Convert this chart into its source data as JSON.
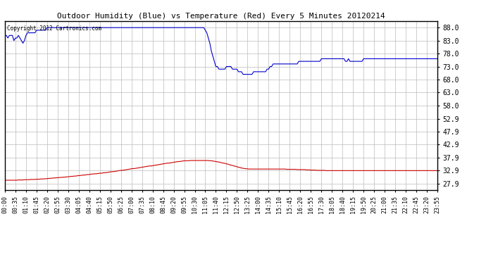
{
  "title": "Outdoor Humidity (Blue) vs Temperature (Red) Every 5 Minutes 20120214",
  "copyright_text": "Copyright 2012 Cartronics.com",
  "yticks": [
    27.9,
    32.9,
    37.9,
    42.9,
    47.9,
    52.9,
    58.0,
    63.0,
    68.0,
    73.0,
    78.0,
    83.0,
    88.0
  ],
  "ymin": 25.4,
  "ymax": 90.5,
  "bg_color": "#ffffff",
  "plot_bg_color": "#ffffff",
  "grid_color": "#bbbbbb",
  "title_color": "#000000",
  "blue_color": "#0000cc",
  "red_color": "#cc0000",
  "n_points": 288,
  "xtick_step": 7,
  "humidity_profile": [
    85,
    85,
    84,
    85,
    85,
    85,
    83,
    84,
    84,
    85,
    84,
    83,
    82,
    83,
    85,
    86,
    86,
    86,
    86,
    86,
    86,
    87,
    87,
    87,
    87,
    87,
    87,
    87,
    88,
    88,
    88,
    88,
    88,
    88,
    88,
    88,
    88,
    88,
    88,
    88,
    88,
    88,
    88,
    88,
    88,
    88,
    88,
    88,
    88,
    88,
    88,
    88,
    88,
    88,
    88,
    88,
    88,
    88,
    88,
    88,
    88,
    88,
    88,
    88,
    88,
    88,
    88,
    88,
    88,
    88,
    88,
    88,
    88,
    88,
    88,
    88,
    88,
    88,
    88,
    88,
    88,
    88,
    88,
    88,
    88,
    88,
    88,
    88,
    88,
    88,
    88,
    88,
    88,
    88,
    88,
    88,
    88,
    88,
    88,
    88,
    88,
    88,
    88,
    88,
    88,
    88,
    88,
    88,
    88,
    88,
    88,
    88,
    88,
    88,
    88,
    88,
    88,
    88,
    88,
    88,
    88,
    88,
    88,
    88,
    88,
    88,
    88,
    88,
    88,
    88,
    88,
    88,
    88,
    87,
    86,
    84,
    82,
    79,
    77,
    75,
    73,
    73,
    72,
    72,
    72,
    72,
    72,
    73,
    73,
    73,
    73,
    72,
    72,
    72,
    72,
    71,
    71,
    71,
    70,
    70,
    70,
    70,
    70,
    70,
    70,
    71,
    71,
    71,
    71,
    71,
    71,
    71,
    71,
    71,
    72,
    72,
    73,
    73,
    74,
    74,
    74,
    74,
    74,
    74,
    74,
    74,
    74,
    74,
    74,
    74,
    74,
    74,
    74,
    74,
    74,
    75,
    75,
    75,
    75,
    75,
    75,
    75,
    75,
    75,
    75,
    75,
    75,
    75,
    75,
    75,
    76,
    76,
    76,
    76,
    76,
    76,
    76,
    76,
    76,
    76,
    76,
    76,
    76,
    76,
    76,
    76,
    75,
    75,
    76,
    75,
    75,
    75,
    75,
    75,
    75,
    75,
    75,
    75,
    76,
    76,
    76,
    76,
    76,
    76,
    76,
    76,
    76,
    76,
    76,
    76,
    76,
    76,
    76,
    76,
    76,
    76,
    76,
    76,
    76,
    76,
    76,
    76,
    76,
    76,
    76,
    76,
    76,
    76,
    76,
    76,
    76,
    76,
    76,
    76,
    76,
    76,
    76,
    76,
    76,
    76,
    76,
    76,
    76,
    76,
    76,
    76,
    76,
    76
  ],
  "temp_profile": [
    29.2,
    29.2,
    29.2,
    29.2,
    29.2,
    29.2,
    29.2,
    29.2,
    29.2,
    29.3,
    29.3,
    29.3,
    29.3,
    29.4,
    29.4,
    29.4,
    29.4,
    29.5,
    29.5,
    29.5,
    29.5,
    29.6,
    29.6,
    29.6,
    29.7,
    29.7,
    29.7,
    29.8,
    29.8,
    29.9,
    29.9,
    30.0,
    30.0,
    30.1,
    30.1,
    30.2,
    30.2,
    30.3,
    30.3,
    30.4,
    30.4,
    30.5,
    30.5,
    30.6,
    30.7,
    30.7,
    30.8,
    30.8,
    30.9,
    31.0,
    31.0,
    31.1,
    31.2,
    31.2,
    31.3,
    31.4,
    31.4,
    31.5,
    31.6,
    31.6,
    31.7,
    31.7,
    31.8,
    31.9,
    31.9,
    32.0,
    32.1,
    32.1,
    32.2,
    32.3,
    32.4,
    32.5,
    32.5,
    32.6,
    32.7,
    32.8,
    32.9,
    33.0,
    33.0,
    33.1,
    33.2,
    33.3,
    33.4,
    33.5,
    33.6,
    33.7,
    33.7,
    33.8,
    33.9,
    34.0,
    34.1,
    34.2,
    34.3,
    34.4,
    34.5,
    34.6,
    34.7,
    34.7,
    34.8,
    34.9,
    35.0,
    35.1,
    35.2,
    35.3,
    35.4,
    35.5,
    35.6,
    35.7,
    35.8,
    35.8,
    35.9,
    36.0,
    36.1,
    36.2,
    36.3,
    36.4,
    36.4,
    36.5,
    36.6,
    36.7,
    36.7,
    36.7,
    36.7,
    36.8,
    36.8,
    36.8,
    36.8,
    36.8,
    36.8,
    36.8,
    36.8,
    36.8,
    36.8,
    36.8,
    36.8,
    36.8,
    36.7,
    36.7,
    36.6,
    36.5,
    36.4,
    36.3,
    36.2,
    36.1,
    35.9,
    35.8,
    35.7,
    35.5,
    35.4,
    35.2,
    35.0,
    34.9,
    34.7,
    34.6,
    34.4,
    34.2,
    34.1,
    33.9,
    33.8,
    33.7,
    33.6,
    33.6,
    33.5,
    33.5,
    33.5,
    33.5,
    33.5,
    33.5,
    33.5,
    33.5,
    33.5,
    33.5,
    33.5,
    33.5,
    33.5,
    33.5,
    33.5,
    33.5,
    33.5,
    33.5,
    33.5,
    33.5,
    33.5,
    33.5,
    33.5,
    33.5,
    33.5,
    33.4,
    33.4,
    33.4,
    33.4,
    33.4,
    33.4,
    33.4,
    33.3,
    33.3,
    33.3,
    33.3,
    33.3,
    33.3,
    33.2,
    33.2,
    33.2,
    33.1,
    33.1,
    33.1,
    33.1,
    33.0,
    33.0,
    33.0,
    33.0,
    33.0,
    33.0,
    32.9,
    32.9,
    32.9,
    32.9,
    32.9,
    32.9,
    32.9,
    32.9,
    32.9,
    32.9,
    32.9,
    32.9,
    32.9,
    32.9,
    32.9,
    32.9,
    32.9,
    32.9,
    32.9,
    32.9,
    32.9,
    32.9,
    32.9,
    32.9,
    32.9,
    32.9,
    32.9,
    32.9,
    32.9,
    32.9,
    32.9,
    32.9,
    32.9,
    32.9,
    32.9,
    32.9,
    32.9,
    32.9,
    32.9,
    32.9,
    32.9,
    32.9,
    32.9,
    32.9,
    32.9,
    32.9,
    32.9,
    32.9,
    32.9,
    32.9,
    32.9,
    32.9,
    32.9,
    32.9,
    32.9,
    32.9,
    32.9,
    32.9,
    32.9,
    32.9,
    32.9,
    32.9,
    32.9,
    32.9,
    32.9,
    32.9,
    32.9,
    32.9,
    32.9,
    32.9,
    32.9,
    32.9,
    32.9,
    32.9,
    32.9
  ]
}
